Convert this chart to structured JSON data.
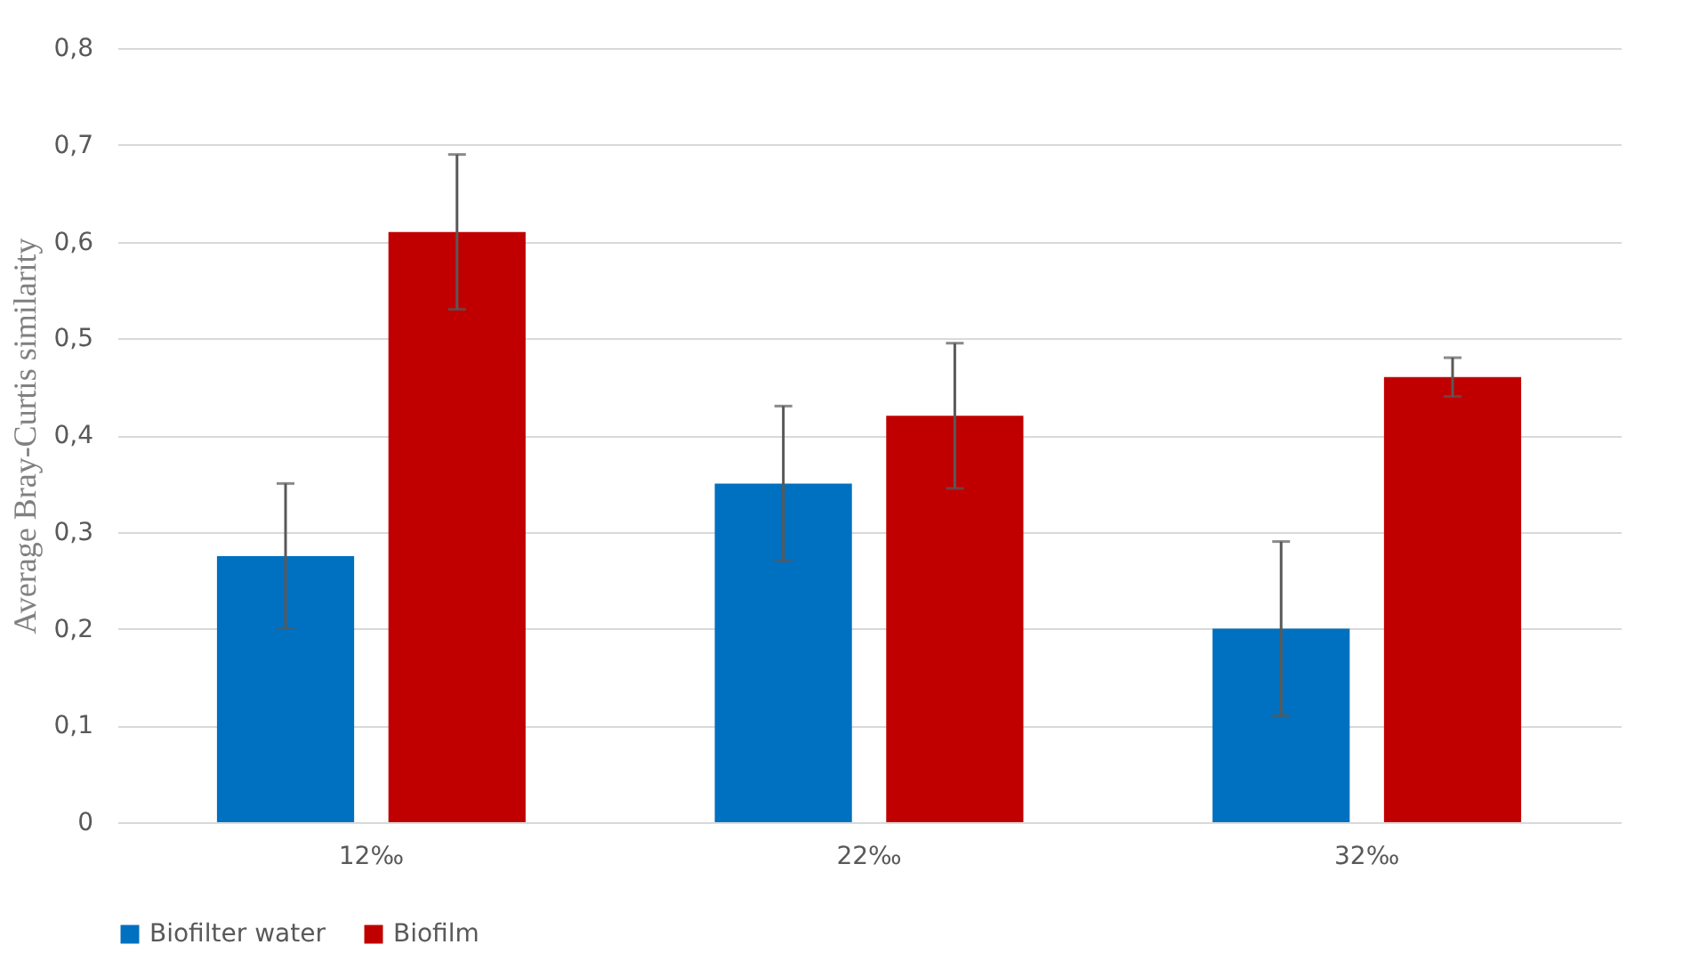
{
  "chart_data": {
    "type": "bar",
    "ylabel": "Average Bray-Curtis similarity",
    "categories": [
      "12‰",
      "22‰",
      "32‰"
    ],
    "series": [
      {
        "name": "Biofilter water",
        "color": "#0070c0",
        "values": [
          0.275,
          0.35,
          0.2
        ],
        "errors": [
          0.075,
          0.08,
          0.09
        ]
      },
      {
        "name": "Biofilm",
        "color": "#c00000",
        "values": [
          0.61,
          0.42,
          0.46
        ],
        "errors": [
          0.08,
          0.075,
          0.02
        ]
      }
    ],
    "ylim": [
      0,
      0.8
    ],
    "yticks": [
      0,
      {
        "value": 0.1,
        "label": "0,1"
      },
      {
        "value": 0.2,
        "label": "0,2"
      },
      {
        "value": 0.3,
        "label": "0,3"
      },
      {
        "value": 0.4,
        "label": "0,4"
      },
      {
        "value": 0.5,
        "label": "0,5"
      },
      {
        "value": 0.6,
        "label": "0,6"
      },
      {
        "value": 0.7,
        "label": "0,7"
      },
      {
        "value": 0.8,
        "label": "0,8"
      }
    ],
    "grid": "y",
    "legend": "bottom"
  }
}
